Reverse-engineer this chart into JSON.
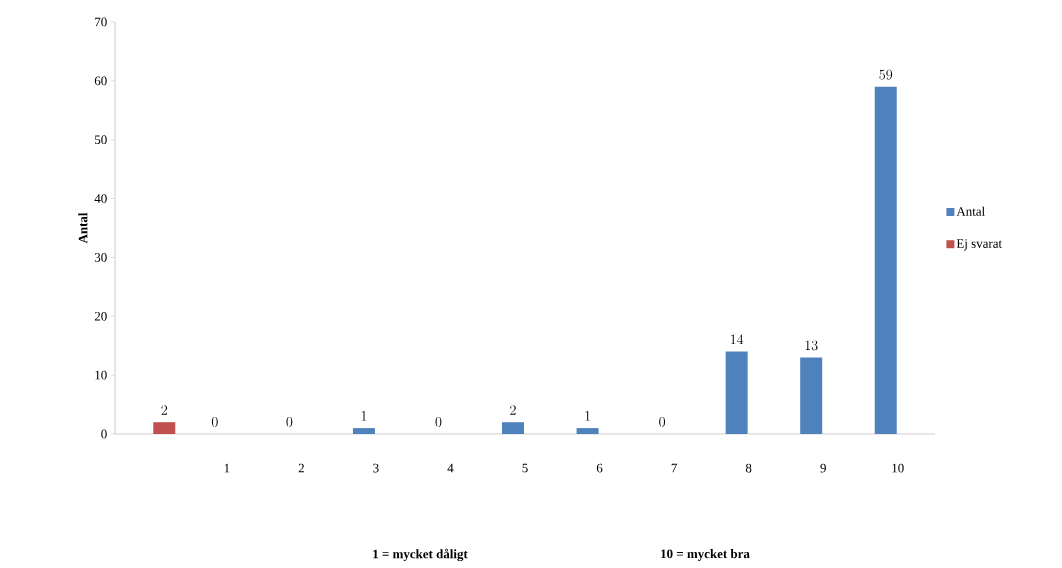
{
  "chart_data": {
    "type": "bar",
    "ylabel": "Antal",
    "categories": [
      null,
      "1",
      "2",
      "3",
      "4",
      "5",
      "6",
      "7",
      "8",
      "9",
      "10"
    ],
    "series": [
      {
        "name": "Antal",
        "color": "#4f81bd",
        "values": [
          null,
          0,
          0,
          1,
          0,
          2,
          1,
          0,
          14,
          13,
          59
        ]
      },
      {
        "name": "Ej svarat",
        "color": "#c0504d",
        "values": [
          2,
          null,
          null,
          null,
          null,
          null,
          null,
          null,
          null,
          null,
          null
        ]
      }
    ],
    "ylim": [
      0,
      70
    ],
    "yticks": [
      0,
      10,
      20,
      30,
      40,
      50,
      60,
      70
    ],
    "data_labels": true,
    "legend": "right",
    "grid": false,
    "annotations": [
      "1 = mycket dåligt",
      "10 = mycket bra"
    ]
  }
}
